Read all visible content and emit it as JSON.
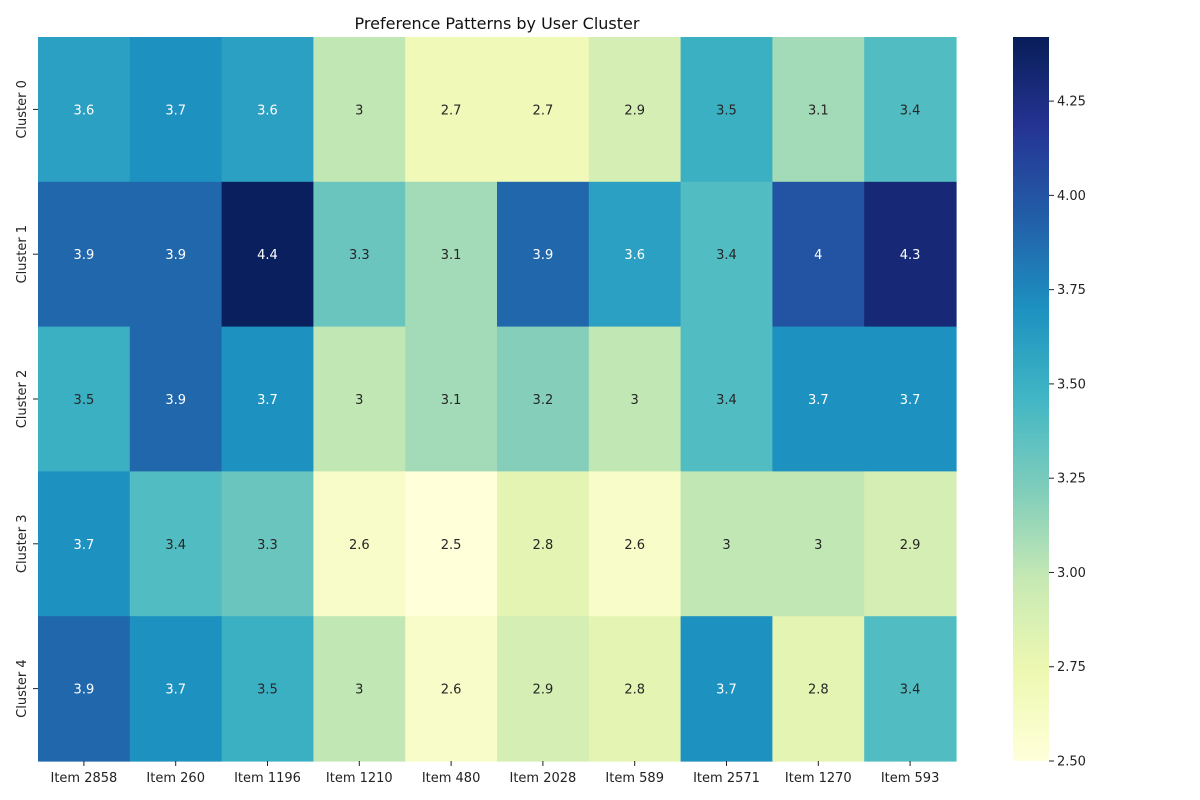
{
  "chart_data": {
    "type": "heatmap",
    "title": "Preference Patterns by User Cluster",
    "xlabel": "",
    "ylabel": "",
    "x_categories": [
      "Item 2858",
      "Item 260",
      "Item 1196",
      "Item 1210",
      "Item 480",
      "Item 2028",
      "Item 589",
      "Item 2571",
      "Item 1270",
      "Item 593"
    ],
    "y_categories": [
      "Cluster 0",
      "Cluster 1",
      "Cluster 2",
      "Cluster 3",
      "Cluster 4"
    ],
    "values": [
      [
        3.6,
        3.7,
        3.6,
        3.0,
        2.7,
        2.7,
        2.9,
        3.5,
        3.1,
        3.4
      ],
      [
        3.9,
        3.9,
        4.4,
        3.3,
        3.1,
        3.9,
        3.6,
        3.4,
        4.0,
        4.3
      ],
      [
        3.5,
        3.9,
        3.7,
        3.0,
        3.1,
        3.2,
        3.0,
        3.4,
        3.7,
        3.7
      ],
      [
        3.7,
        3.4,
        3.3,
        2.6,
        2.5,
        2.8,
        2.6,
        3.0,
        3.0,
        2.9
      ],
      [
        3.9,
        3.7,
        3.5,
        3.0,
        2.6,
        2.9,
        2.8,
        3.7,
        2.8,
        3.4
      ]
    ],
    "cell_labels": [
      [
        "3.6",
        "3.7",
        "3.6",
        "3",
        "2.7",
        "2.7",
        "2.9",
        "3.5",
        "3.1",
        "3.4"
      ],
      [
        "3.9",
        "3.9",
        "4.4",
        "3.3",
        "3.1",
        "3.9",
        "3.6",
        "3.4",
        "4",
        "4.3"
      ],
      [
        "3.5",
        "3.9",
        "3.7",
        "3",
        "3.1",
        "3.2",
        "3",
        "3.4",
        "3.7",
        "3.7"
      ],
      [
        "3.7",
        "3.4",
        "3.3",
        "2.6",
        "2.5",
        "2.8",
        "2.6",
        "3",
        "3",
        "2.9"
      ],
      [
        "3.9",
        "3.7",
        "3.5",
        "3",
        "2.6",
        "2.9",
        "2.8",
        "3.7",
        "2.8",
        "3.4"
      ]
    ],
    "colormap": "YlGnBu",
    "color_range": [
      2.5,
      4.42
    ],
    "colorbar_ticks": [
      2.5,
      2.75,
      3.0,
      3.25,
      3.5,
      3.75,
      4.0,
      4.25
    ],
    "colorbar_tick_labels": [
      "2.50",
      "2.75",
      "3.00",
      "3.25",
      "3.50",
      "3.75",
      "4.00",
      "4.25"
    ],
    "grid": false,
    "legend": "colorbar-right"
  }
}
